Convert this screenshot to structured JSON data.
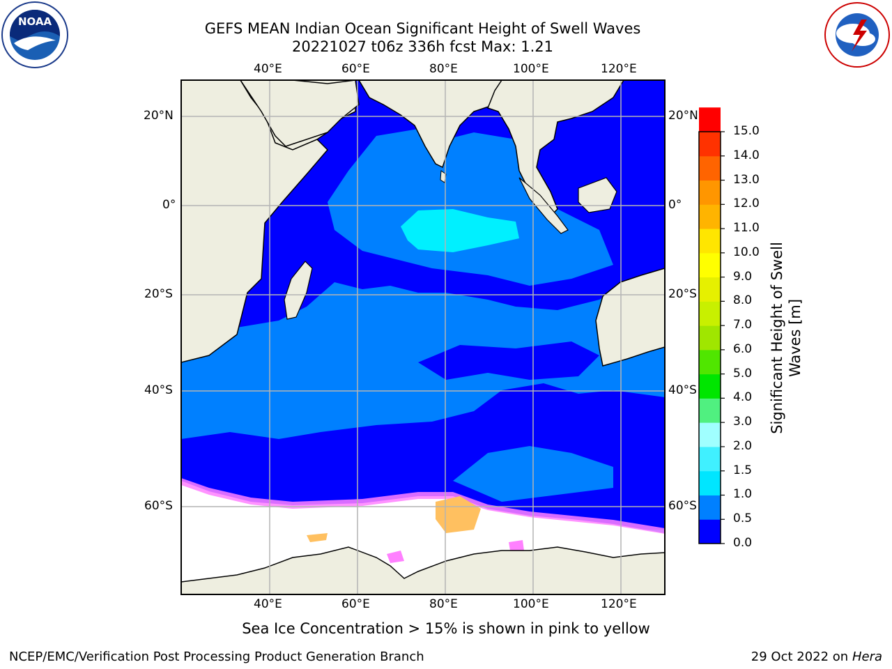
{
  "title_line1": "GEFS MEAN Indian Ocean Significant Height of Swell Waves",
  "title_line2": "20221027 t06z 336h fcst   Max: 1.21",
  "top_lon_labels": [
    "40°E",
    "60°E",
    "80°E",
    "100°E",
    "120°E"
  ],
  "bottom_lon_labels": [
    "40°E",
    "60°E",
    "80°E",
    "100°E",
    "120°E"
  ],
  "left_lat_labels": [
    "20°N",
    "0°",
    "20°S",
    "40°S",
    "60°S"
  ],
  "right_lat_labels": [
    "20°N",
    "0°",
    "20°S",
    "40°S",
    "60°S"
  ],
  "colorbar": {
    "title_line1": "Significant Height of Swell",
    "title_line2": "Waves [m]",
    "tick_labels": [
      "15.0",
      "14.0",
      "13.0",
      "12.0",
      "11.0",
      "10.0",
      "9.0",
      "8.0",
      "7.0",
      "6.0",
      "5.0",
      "4.0",
      "3.0",
      "2.0",
      "1.5",
      "1.0",
      "0.5",
      "0.0"
    ],
    "colors": [
      "#0000ff",
      "#0080ff",
      "#00e6ff",
      "#40f0ff",
      "#a0ffff",
      "#50f080",
      "#00e600",
      "#50e600",
      "#a0e600",
      "#c8f000",
      "#e6f000",
      "#ffff00",
      "#ffe600",
      "#ffb400",
      "#ff9600",
      "#ff6400",
      "#ff3200",
      "#ff0000"
    ]
  },
  "caption": "Sea Ice Concentration > 15% is shown in pink to yellow",
  "footer_left": "NCEP/EMC/Verification Post Processing Product Generation Branch",
  "footer_right_date": "29 Oct 2022 on ",
  "footer_right_host": "Hera",
  "logo_left_text": "NOAA",
  "colors": {
    "land": "#eeeee0",
    "ocean_dark": "#0000ff",
    "ocean_mid": "#0080ff",
    "ocean_light": "#00ffff",
    "ice_white": "#ffffff",
    "ice_pink": "#ff80ff",
    "ice_orange": "#ffc060",
    "grid": "#b4b4b4"
  }
}
